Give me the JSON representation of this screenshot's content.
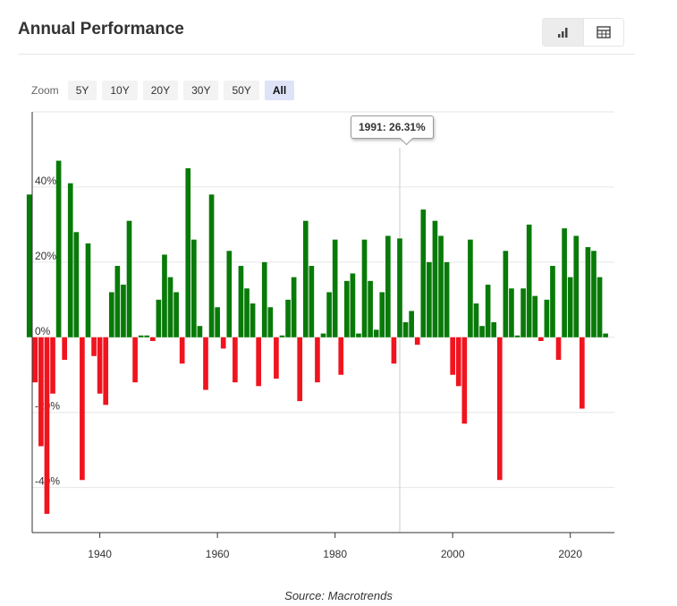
{
  "header": {
    "title": "Annual Performance"
  },
  "view_toggle": {
    "chart_icon": "bar-chart-icon",
    "table_icon": "table-icon"
  },
  "zoom": {
    "label": "Zoom",
    "buttons": [
      "5Y",
      "10Y",
      "20Y",
      "30Y",
      "50Y",
      "All"
    ],
    "active": "All"
  },
  "tooltip": {
    "text": "1991: 26.31%"
  },
  "source": "Source: Macrotrends",
  "colors": {
    "positive": "#087a08",
    "negative": "#f0141e",
    "grid": "#e6e6e6",
    "crosshair": "#cccccc"
  },
  "chart_data": {
    "type": "bar",
    "title": "Annual Performance",
    "xlabel": "",
    "ylabel": "",
    "xlim": [
      1928.5,
      2027.5
    ],
    "ylim": [
      -52,
      60
    ],
    "x_ticks": [
      1940,
      1960,
      1980,
      2000,
      2020
    ],
    "x_tick_labels": [
      "1940",
      "1960",
      "1980",
      "2000",
      "2020"
    ],
    "y_ticks": [
      -40,
      -20,
      0,
      20,
      40
    ],
    "y_tick_labels": [
      "-40%",
      "-20%",
      "0%",
      "20%",
      "40%"
    ],
    "grid": "horizontal",
    "highlight": {
      "year": 1991,
      "value": 26.31
    },
    "series": [
      {
        "years": [
          1928,
          1929,
          1930,
          1931,
          1932,
          1933,
          1934,
          1935,
          1936,
          1937,
          1938,
          1939,
          1940,
          1941,
          1942,
          1943,
          1944,
          1945,
          1946,
          1947,
          1948,
          1949,
          1950,
          1951,
          1952,
          1953,
          1954,
          1955,
          1956,
          1957,
          1958,
          1959,
          1960,
          1961,
          1962,
          1963,
          1964,
          1965,
          1966,
          1967,
          1968,
          1969,
          1970,
          1971,
          1972,
          1973,
          1974,
          1975,
          1976,
          1977,
          1978,
          1979,
          1980,
          1981,
          1982,
          1983,
          1984,
          1985,
          1986,
          1987,
          1988,
          1989,
          1990,
          1991,
          1992,
          1993,
          1994,
          1995,
          1996,
          1997,
          1998,
          1999,
          2000,
          2001,
          2002,
          2003,
          2004,
          2005,
          2006,
          2007,
          2008,
          2009,
          2010,
          2011,
          2012,
          2013,
          2014,
          2015,
          2016,
          2017,
          2018,
          2019,
          2020,
          2021,
          2022,
          2023,
          2024,
          2025,
          2026
        ],
        "values": [
          38,
          -12,
          -29,
          -47,
          -15,
          47,
          -6,
          41,
          28,
          -38,
          25,
          -5,
          -15,
          -18,
          12,
          19,
          14,
          31,
          -12,
          0,
          0,
          -1,
          10,
          22,
          16,
          12,
          -7,
          45,
          26,
          3,
          -14,
          38,
          8,
          -3,
          23,
          -12,
          19,
          13,
          9,
          -13,
          20,
          8,
          -11,
          0,
          10,
          16,
          -17,
          31,
          19,
          -12,
          1,
          12,
          26,
          -10,
          15,
          17,
          1,
          26,
          15,
          2,
          12,
          27,
          -7,
          26.31,
          4,
          7,
          -2,
          34,
          20,
          31,
          27,
          20,
          -10,
          -13,
          -23,
          26,
          9,
          3,
          14,
          4,
          -38,
          23,
          13,
          0,
          13,
          30,
          11,
          -1,
          10,
          19,
          -6,
          29,
          16,
          27,
          -19,
          24,
          23,
          16,
          1
        ]
      }
    ]
  }
}
